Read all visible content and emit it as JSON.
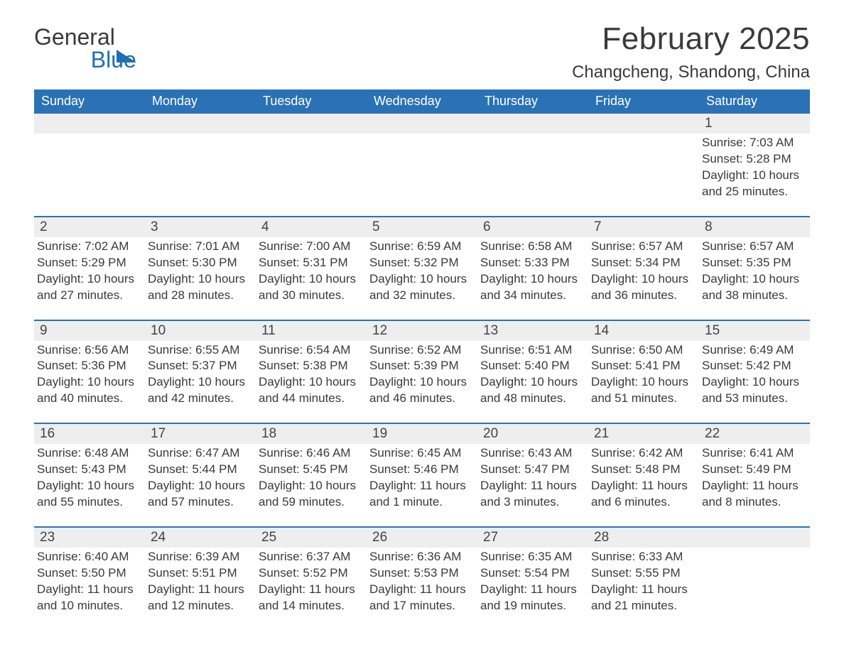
{
  "brand": {
    "word1": "General",
    "word2": "Blue"
  },
  "title": "February 2025",
  "location": "Changcheng, Shandong, China",
  "colors": {
    "header_bg": "#2a72b5",
    "header_text": "#ffffff",
    "daynum_bg": "#eeeeee",
    "rule": "#2a72b5",
    "text": "#3a3a3a",
    "brand_blue": "#1f6fb2"
  },
  "weekdays": [
    "Sunday",
    "Monday",
    "Tuesday",
    "Wednesday",
    "Thursday",
    "Friday",
    "Saturday"
  ],
  "weeks": [
    [
      null,
      null,
      null,
      null,
      null,
      null,
      {
        "n": "1",
        "sunrise": "Sunrise: 7:03 AM",
        "sunset": "Sunset: 5:28 PM",
        "daylight": "Daylight: 10 hours and 25 minutes."
      }
    ],
    [
      {
        "n": "2",
        "sunrise": "Sunrise: 7:02 AM",
        "sunset": "Sunset: 5:29 PM",
        "daylight": "Daylight: 10 hours and 27 minutes."
      },
      {
        "n": "3",
        "sunrise": "Sunrise: 7:01 AM",
        "sunset": "Sunset: 5:30 PM",
        "daylight": "Daylight: 10 hours and 28 minutes."
      },
      {
        "n": "4",
        "sunrise": "Sunrise: 7:00 AM",
        "sunset": "Sunset: 5:31 PM",
        "daylight": "Daylight: 10 hours and 30 minutes."
      },
      {
        "n": "5",
        "sunrise": "Sunrise: 6:59 AM",
        "sunset": "Sunset: 5:32 PM",
        "daylight": "Daylight: 10 hours and 32 minutes."
      },
      {
        "n": "6",
        "sunrise": "Sunrise: 6:58 AM",
        "sunset": "Sunset: 5:33 PM",
        "daylight": "Daylight: 10 hours and 34 minutes."
      },
      {
        "n": "7",
        "sunrise": "Sunrise: 6:57 AM",
        "sunset": "Sunset: 5:34 PM",
        "daylight": "Daylight: 10 hours and 36 minutes."
      },
      {
        "n": "8",
        "sunrise": "Sunrise: 6:57 AM",
        "sunset": "Sunset: 5:35 PM",
        "daylight": "Daylight: 10 hours and 38 minutes."
      }
    ],
    [
      {
        "n": "9",
        "sunrise": "Sunrise: 6:56 AM",
        "sunset": "Sunset: 5:36 PM",
        "daylight": "Daylight: 10 hours and 40 minutes."
      },
      {
        "n": "10",
        "sunrise": "Sunrise: 6:55 AM",
        "sunset": "Sunset: 5:37 PM",
        "daylight": "Daylight: 10 hours and 42 minutes."
      },
      {
        "n": "11",
        "sunrise": "Sunrise: 6:54 AM",
        "sunset": "Sunset: 5:38 PM",
        "daylight": "Daylight: 10 hours and 44 minutes."
      },
      {
        "n": "12",
        "sunrise": "Sunrise: 6:52 AM",
        "sunset": "Sunset: 5:39 PM",
        "daylight": "Daylight: 10 hours and 46 minutes."
      },
      {
        "n": "13",
        "sunrise": "Sunrise: 6:51 AM",
        "sunset": "Sunset: 5:40 PM",
        "daylight": "Daylight: 10 hours and 48 minutes."
      },
      {
        "n": "14",
        "sunrise": "Sunrise: 6:50 AM",
        "sunset": "Sunset: 5:41 PM",
        "daylight": "Daylight: 10 hours and 51 minutes."
      },
      {
        "n": "15",
        "sunrise": "Sunrise: 6:49 AM",
        "sunset": "Sunset: 5:42 PM",
        "daylight": "Daylight: 10 hours and 53 minutes."
      }
    ],
    [
      {
        "n": "16",
        "sunrise": "Sunrise: 6:48 AM",
        "sunset": "Sunset: 5:43 PM",
        "daylight": "Daylight: 10 hours and 55 minutes."
      },
      {
        "n": "17",
        "sunrise": "Sunrise: 6:47 AM",
        "sunset": "Sunset: 5:44 PM",
        "daylight": "Daylight: 10 hours and 57 minutes."
      },
      {
        "n": "18",
        "sunrise": "Sunrise: 6:46 AM",
        "sunset": "Sunset: 5:45 PM",
        "daylight": "Daylight: 10 hours and 59 minutes."
      },
      {
        "n": "19",
        "sunrise": "Sunrise: 6:45 AM",
        "sunset": "Sunset: 5:46 PM",
        "daylight": "Daylight: 11 hours and 1 minute."
      },
      {
        "n": "20",
        "sunrise": "Sunrise: 6:43 AM",
        "sunset": "Sunset: 5:47 PM",
        "daylight": "Daylight: 11 hours and 3 minutes."
      },
      {
        "n": "21",
        "sunrise": "Sunrise: 6:42 AM",
        "sunset": "Sunset: 5:48 PM",
        "daylight": "Daylight: 11 hours and 6 minutes."
      },
      {
        "n": "22",
        "sunrise": "Sunrise: 6:41 AM",
        "sunset": "Sunset: 5:49 PM",
        "daylight": "Daylight: 11 hours and 8 minutes."
      }
    ],
    [
      {
        "n": "23",
        "sunrise": "Sunrise: 6:40 AM",
        "sunset": "Sunset: 5:50 PM",
        "daylight": "Daylight: 11 hours and 10 minutes."
      },
      {
        "n": "24",
        "sunrise": "Sunrise: 6:39 AM",
        "sunset": "Sunset: 5:51 PM",
        "daylight": "Daylight: 11 hours and 12 minutes."
      },
      {
        "n": "25",
        "sunrise": "Sunrise: 6:37 AM",
        "sunset": "Sunset: 5:52 PM",
        "daylight": "Daylight: 11 hours and 14 minutes."
      },
      {
        "n": "26",
        "sunrise": "Sunrise: 6:36 AM",
        "sunset": "Sunset: 5:53 PM",
        "daylight": "Daylight: 11 hours and 17 minutes."
      },
      {
        "n": "27",
        "sunrise": "Sunrise: 6:35 AM",
        "sunset": "Sunset: 5:54 PM",
        "daylight": "Daylight: 11 hours and 19 minutes."
      },
      {
        "n": "28",
        "sunrise": "Sunrise: 6:33 AM",
        "sunset": "Sunset: 5:55 PM",
        "daylight": "Daylight: 11 hours and 21 minutes."
      },
      null
    ]
  ]
}
